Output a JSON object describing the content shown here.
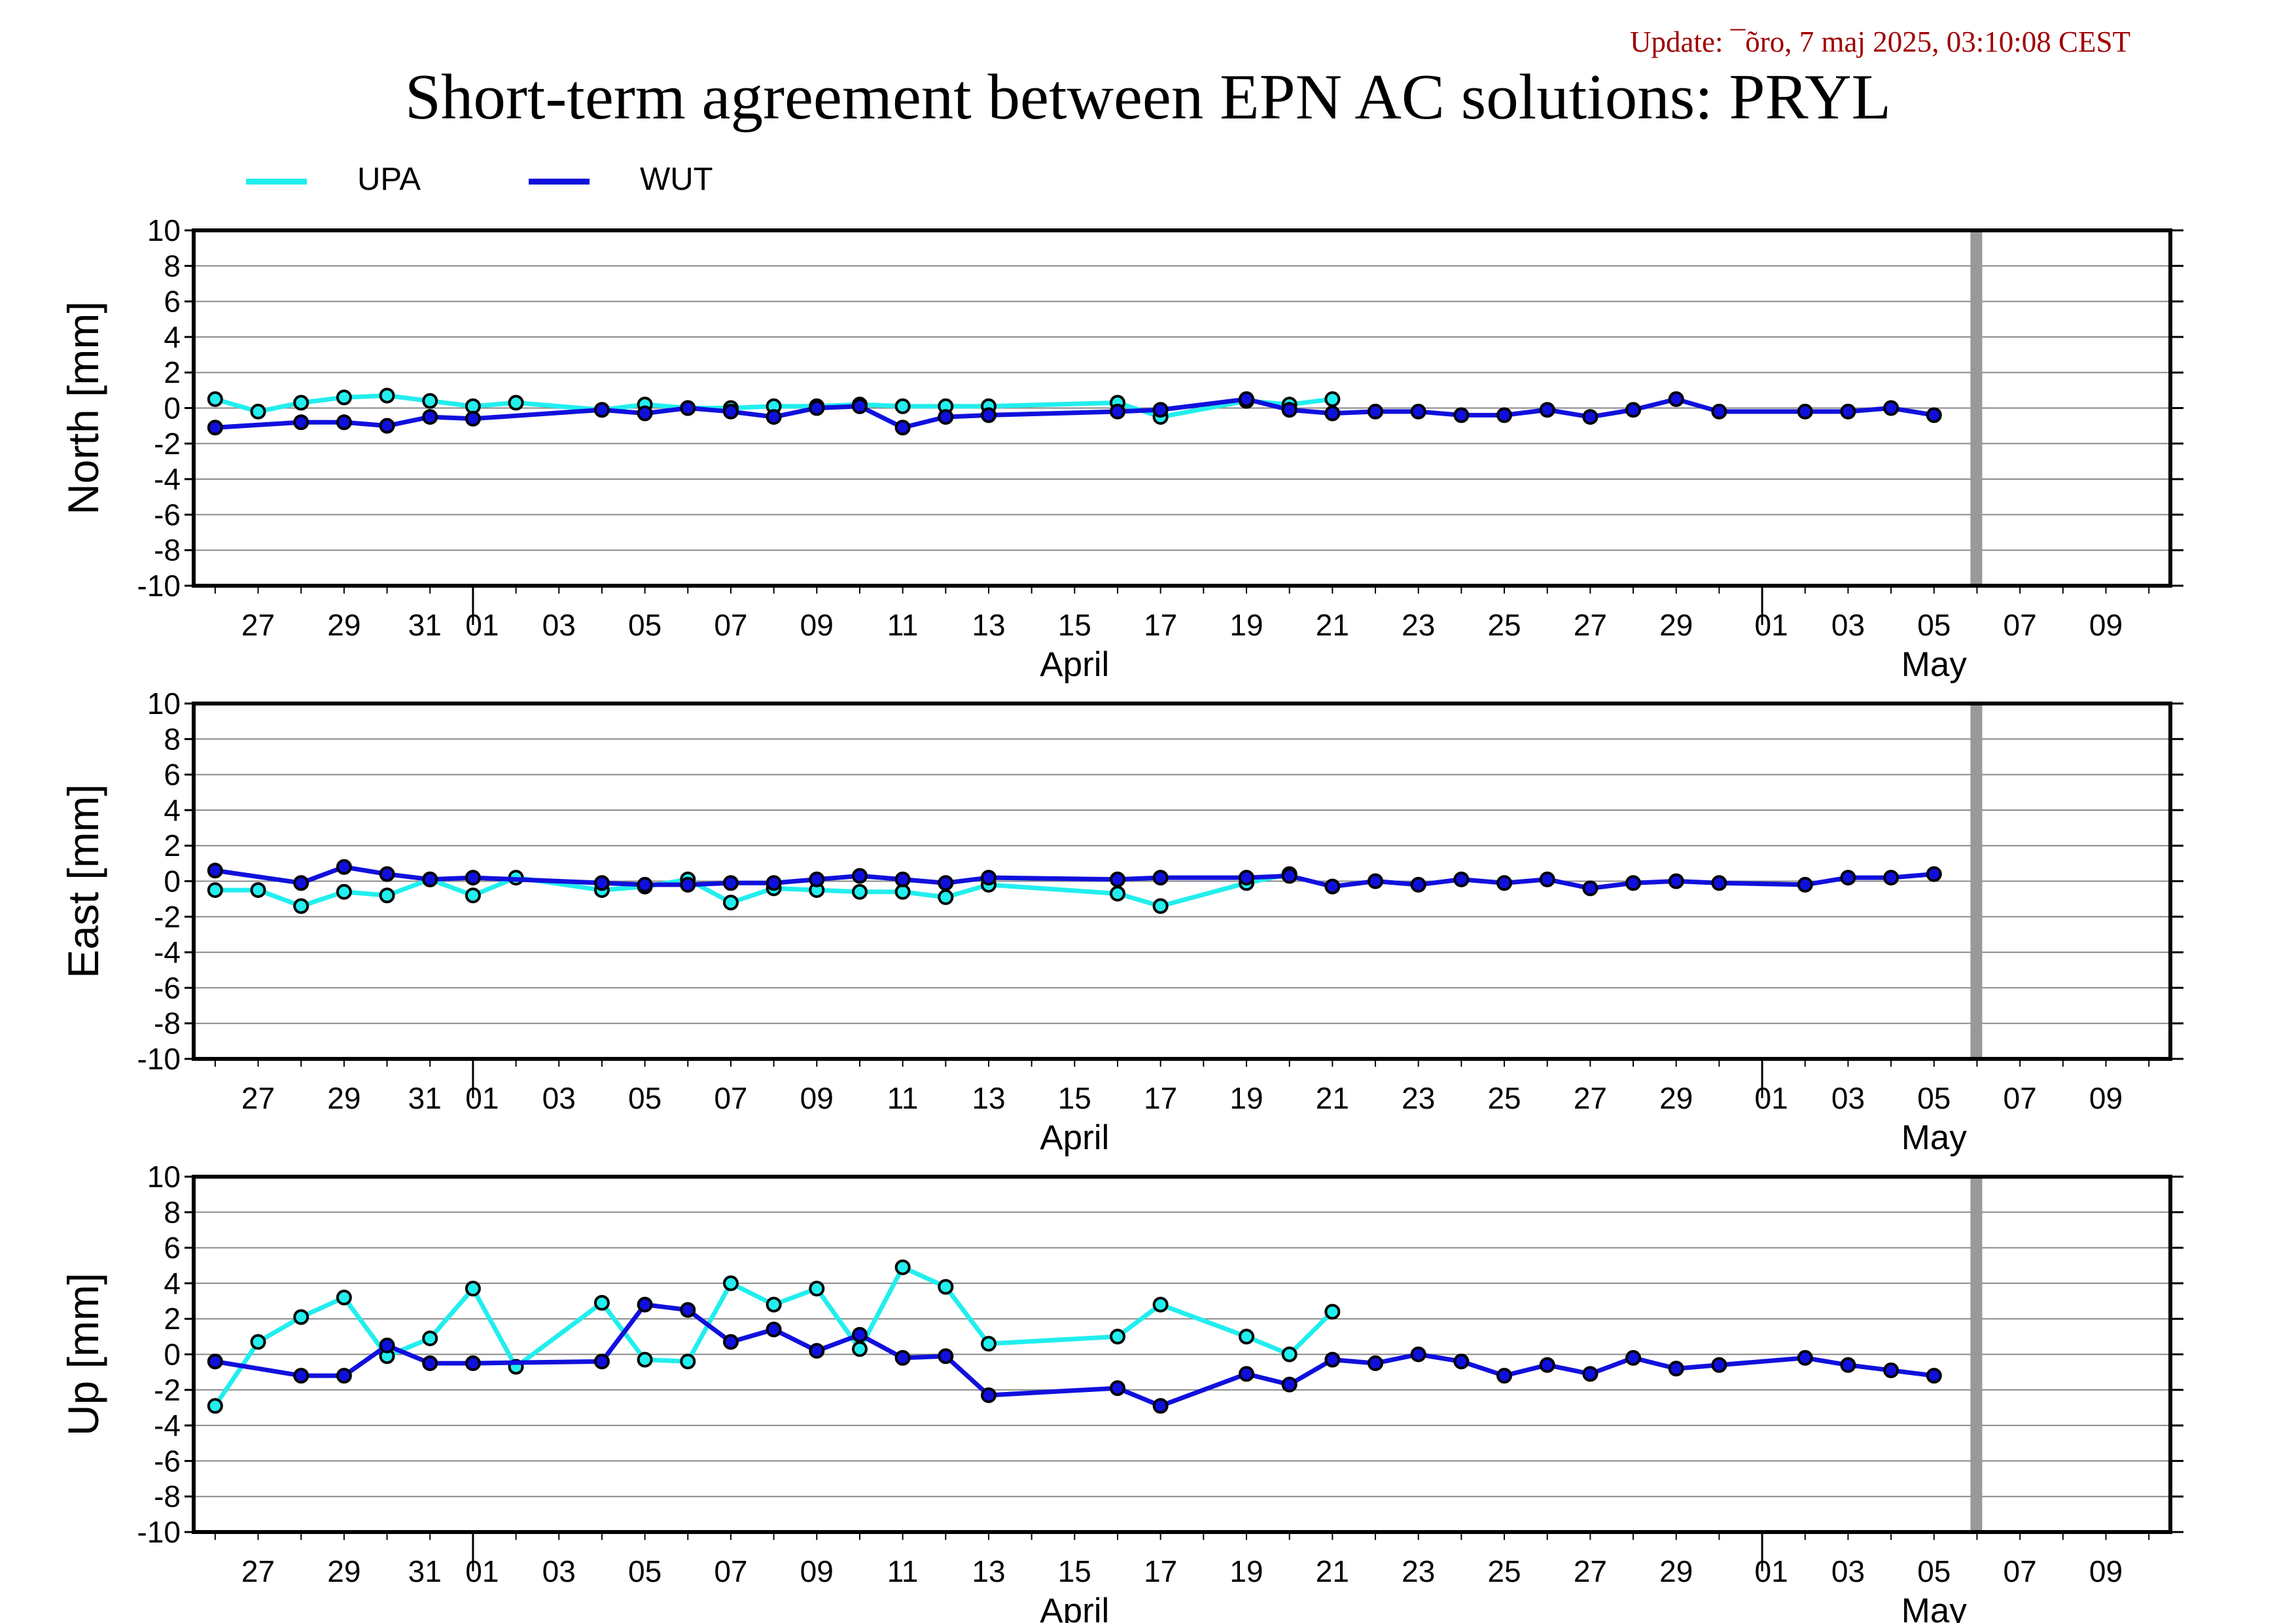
{
  "header": {
    "update_text": "Update: ¯õro, 7 maj 2025, 03:10:08 CEST",
    "title": "Short-term agreement between EPN AC solutions: PRYL"
  },
  "legend": [
    {
      "name": "UPA",
      "color": "#22eeee"
    },
    {
      "name": "WUT",
      "color": "#1010dd"
    }
  ],
  "colors": {
    "upa": "#22eeee",
    "wut": "#1010dd",
    "marker_edge": "#000000",
    "today_bar": "#999999",
    "grid": "#888888"
  },
  "chart_data": [
    {
      "type": "line",
      "ylabel": "North [mm]",
      "ylim": [
        -10,
        10
      ],
      "yticks": [
        10,
        8,
        6,
        4,
        2,
        0,
        -2,
        -4,
        -6,
        -8,
        -10
      ],
      "xlim": [
        "2025-03-25T12:00",
        "2025-05-10T12:00"
      ],
      "grid": "horizontal",
      "series": [
        {
          "name": "UPA",
          "x": [
            "2025-03-26",
            "2025-03-27",
            "2025-03-28",
            "2025-03-29",
            "2025-03-30",
            "2025-03-31",
            "2025-04-01",
            "2025-04-02",
            "2025-04-04",
            "2025-04-05",
            "2025-04-06",
            "2025-04-07",
            "2025-04-08",
            "2025-04-09",
            "2025-04-10",
            "2025-04-11",
            "2025-04-12",
            "2025-04-13",
            "2025-04-16",
            "2025-04-17",
            "2025-04-19",
            "2025-04-20",
            "2025-04-21"
          ],
          "y": [
            0.5,
            -0.2,
            0.3,
            0.6,
            0.7,
            0.4,
            0.1,
            0.3,
            -0.1,
            0.2,
            0.0,
            0.0,
            0.1,
            0.1,
            0.2,
            0.1,
            0.1,
            0.1,
            0.3,
            -0.5,
            0.4,
            0.2,
            0.5
          ]
        },
        {
          "name": "WUT",
          "x": [
            "2025-03-26",
            "2025-03-28",
            "2025-03-29",
            "2025-03-30",
            "2025-03-31",
            "2025-04-01",
            "2025-04-04",
            "2025-04-05",
            "2025-04-06",
            "2025-04-07",
            "2025-04-08",
            "2025-04-09",
            "2025-04-10",
            "2025-04-11",
            "2025-04-12",
            "2025-04-13",
            "2025-04-16",
            "2025-04-17",
            "2025-04-19",
            "2025-04-20",
            "2025-04-21",
            "2025-04-22",
            "2025-04-23",
            "2025-04-24",
            "2025-04-25",
            "2025-04-26",
            "2025-04-27",
            "2025-04-28",
            "2025-04-29",
            "2025-04-30",
            "2025-05-02",
            "2025-05-03",
            "2025-05-04",
            "2025-05-05"
          ],
          "y": [
            -1.1,
            -0.8,
            -0.8,
            -1.0,
            -0.5,
            -0.6,
            -0.1,
            -0.3,
            0.0,
            -0.2,
            -0.5,
            0.0,
            0.1,
            -1.1,
            -0.5,
            -0.4,
            -0.2,
            -0.1,
            0.5,
            -0.1,
            -0.3,
            -0.2,
            -0.2,
            -0.4,
            -0.4,
            -0.1,
            -0.5,
            -0.1,
            0.5,
            -0.2,
            -0.2,
            -0.2,
            0.0,
            -0.4
          ]
        }
      ]
    },
    {
      "type": "line",
      "ylabel": "East [mm]",
      "ylim": [
        -10,
        10
      ],
      "yticks": [
        10,
        8,
        6,
        4,
        2,
        0,
        -2,
        -4,
        -6,
        -8,
        -10
      ],
      "xlim": [
        "2025-03-25T12:00",
        "2025-05-10T12:00"
      ],
      "grid": "horizontal",
      "series": [
        {
          "name": "UPA",
          "x": [
            "2025-03-26",
            "2025-03-27",
            "2025-03-28",
            "2025-03-29",
            "2025-03-30",
            "2025-03-31",
            "2025-04-01",
            "2025-04-02",
            "2025-04-04",
            "2025-04-05",
            "2025-04-06",
            "2025-04-07",
            "2025-04-08",
            "2025-04-09",
            "2025-04-10",
            "2025-04-11",
            "2025-04-12",
            "2025-04-13",
            "2025-04-16",
            "2025-04-17",
            "2025-04-19",
            "2025-04-20"
          ],
          "y": [
            -0.5,
            -0.5,
            -1.4,
            -0.6,
            -0.8,
            0.1,
            -0.8,
            0.2,
            -0.5,
            -0.3,
            0.1,
            -1.2,
            -0.4,
            -0.5,
            -0.6,
            -0.6,
            -0.9,
            -0.2,
            -0.7,
            -1.4,
            -0.1,
            0.4
          ]
        },
        {
          "name": "WUT",
          "x": [
            "2025-03-26",
            "2025-03-28",
            "2025-03-29",
            "2025-03-30",
            "2025-03-31",
            "2025-04-01",
            "2025-04-04",
            "2025-04-05",
            "2025-04-06",
            "2025-04-07",
            "2025-04-08",
            "2025-04-09",
            "2025-04-10",
            "2025-04-11",
            "2025-04-12",
            "2025-04-13",
            "2025-04-16",
            "2025-04-17",
            "2025-04-19",
            "2025-04-20",
            "2025-04-21",
            "2025-04-22",
            "2025-04-23",
            "2025-04-24",
            "2025-04-25",
            "2025-04-26",
            "2025-04-27",
            "2025-04-28",
            "2025-04-29",
            "2025-04-30",
            "2025-05-02",
            "2025-05-03",
            "2025-05-04",
            "2025-05-05"
          ],
          "y": [
            0.6,
            -0.1,
            0.8,
            0.4,
            0.1,
            0.2,
            -0.1,
            -0.2,
            -0.2,
            -0.1,
            -0.1,
            0.1,
            0.3,
            0.1,
            -0.1,
            0.2,
            0.1,
            0.2,
            0.2,
            0.3,
            -0.3,
            0.0,
            -0.2,
            0.1,
            -0.1,
            0.1,
            -0.4,
            -0.1,
            0.0,
            -0.1,
            -0.2,
            0.2,
            0.2,
            0.4
          ]
        }
      ]
    },
    {
      "type": "line",
      "ylabel": "Up [mm]",
      "ylim": [
        -10,
        10
      ],
      "yticks": [
        10,
        8,
        6,
        4,
        2,
        0,
        -2,
        -4,
        -6,
        -8,
        -10
      ],
      "xlim": [
        "2025-03-25T12:00",
        "2025-05-10T12:00"
      ],
      "grid": "horizontal",
      "series": [
        {
          "name": "UPA",
          "x": [
            "2025-03-26",
            "2025-03-27",
            "2025-03-28",
            "2025-03-29",
            "2025-03-30",
            "2025-03-31",
            "2025-04-01",
            "2025-04-02",
            "2025-04-04",
            "2025-04-05",
            "2025-04-06",
            "2025-04-07",
            "2025-04-08",
            "2025-04-09",
            "2025-04-10",
            "2025-04-11",
            "2025-04-12",
            "2025-04-13",
            "2025-04-16",
            "2025-04-17",
            "2025-04-19",
            "2025-04-20",
            "2025-04-21"
          ],
          "y": [
            -2.9,
            0.7,
            2.1,
            3.2,
            -0.1,
            0.9,
            3.7,
            -0.7,
            2.9,
            -0.3,
            -0.4,
            4.0,
            2.8,
            3.7,
            0.3,
            4.9,
            3.8,
            0.6,
            1.0,
            2.8,
            1.0,
            0.0,
            2.4
          ]
        },
        {
          "name": "WUT",
          "x": [
            "2025-03-26",
            "2025-03-28",
            "2025-03-29",
            "2025-03-30",
            "2025-03-31",
            "2025-04-01",
            "2025-04-04",
            "2025-04-05",
            "2025-04-06",
            "2025-04-07",
            "2025-04-08",
            "2025-04-09",
            "2025-04-10",
            "2025-04-11",
            "2025-04-12",
            "2025-04-13",
            "2025-04-16",
            "2025-04-17",
            "2025-04-19",
            "2025-04-20",
            "2025-04-21",
            "2025-04-22",
            "2025-04-23",
            "2025-04-24",
            "2025-04-25",
            "2025-04-26",
            "2025-04-27",
            "2025-04-28",
            "2025-04-29",
            "2025-04-30",
            "2025-05-02",
            "2025-05-03",
            "2025-05-04",
            "2025-05-05"
          ],
          "y": [
            -0.4,
            -1.2,
            -1.2,
            0.5,
            -0.5,
            -0.5,
            -0.4,
            2.8,
            2.5,
            0.7,
            1.4,
            0.2,
            1.1,
            -0.2,
            -0.1,
            -2.3,
            -1.9,
            -2.9,
            -1.1,
            -1.7,
            -0.3,
            -0.5,
            0.0,
            -0.4,
            -1.2,
            -0.6,
            -1.1,
            -0.2,
            -0.8,
            -0.6,
            -0.2,
            -0.6,
            -0.9,
            -1.2
          ]
        }
      ]
    }
  ],
  "x_axis": {
    "tick_labels": [
      {
        "date": "2025-03-27",
        "label": "27"
      },
      {
        "date": "2025-03-29",
        "label": "29"
      },
      {
        "date": "2025-03-31",
        "label": "31"
      },
      {
        "date": "2025-04-01",
        "label": "01"
      },
      {
        "date": "2025-04-03",
        "label": "03"
      },
      {
        "date": "2025-04-05",
        "label": "05"
      },
      {
        "date": "2025-04-07",
        "label": "07"
      },
      {
        "date": "2025-04-09",
        "label": "09"
      },
      {
        "date": "2025-04-11",
        "label": "11"
      },
      {
        "date": "2025-04-13",
        "label": "13"
      },
      {
        "date": "2025-04-15",
        "label": "15"
      },
      {
        "date": "2025-04-17",
        "label": "17"
      },
      {
        "date": "2025-04-19",
        "label": "19"
      },
      {
        "date": "2025-04-21",
        "label": "21"
      },
      {
        "date": "2025-04-23",
        "label": "23"
      },
      {
        "date": "2025-04-25",
        "label": "25"
      },
      {
        "date": "2025-04-27",
        "label": "27"
      },
      {
        "date": "2025-04-29",
        "label": "29"
      },
      {
        "date": "2025-05-01",
        "label": "01"
      },
      {
        "date": "2025-05-03",
        "label": "03"
      },
      {
        "date": "2025-05-05",
        "label": "05"
      },
      {
        "date": "2025-05-07",
        "label": "07"
      },
      {
        "date": "2025-05-09",
        "label": "09"
      }
    ],
    "month_labels": [
      {
        "date": "2025-04-15",
        "label": "April"
      },
      {
        "date": "2025-05-05",
        "label": "May"
      }
    ],
    "month_boundaries": [
      "2025-04-01",
      "2025-05-01"
    ],
    "current_date_marker": "2025-05-06"
  }
}
